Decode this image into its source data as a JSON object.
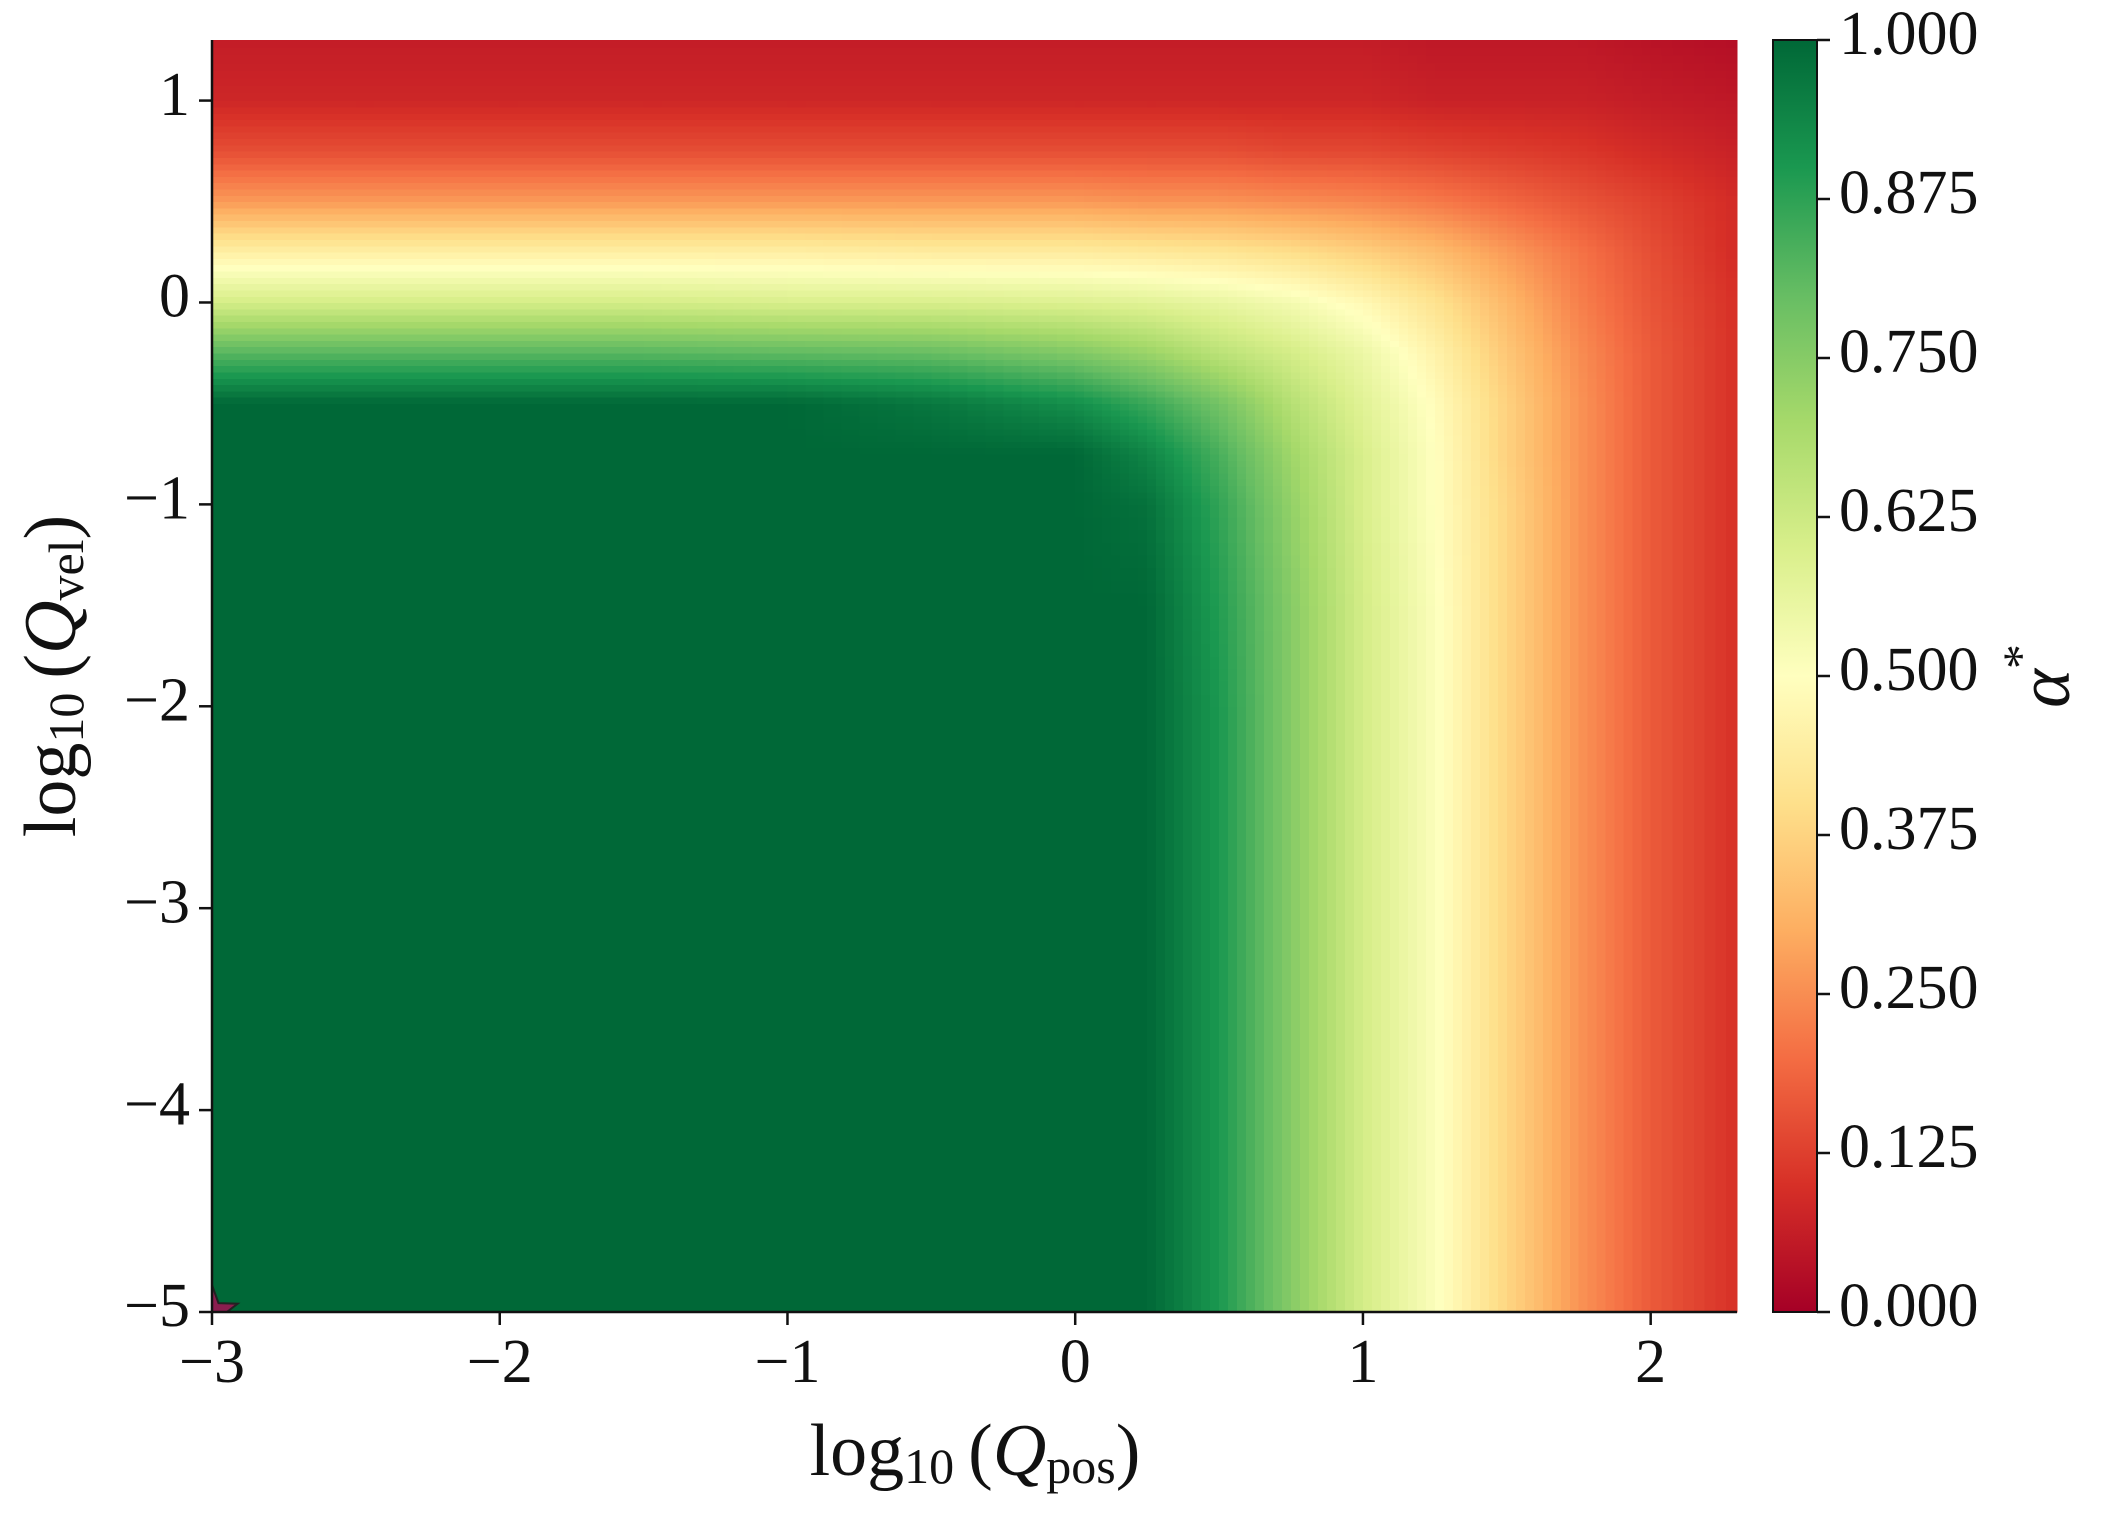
{
  "chart_data": {
    "type": "contourf",
    "x": [
      -3,
      -2.5,
      -2,
      -1.5,
      -1,
      -0.5,
      0,
      0.25,
      0.5,
      0.75,
      1,
      1.25,
      1.5,
      1.75,
      2,
      2.3
    ],
    "y": [
      -5,
      -4,
      -3,
      -2,
      -1.5,
      -1,
      -0.75,
      -0.5,
      -0.25,
      0,
      0.25,
      0.5,
      0.75,
      1,
      1.3
    ],
    "z": [
      [
        1,
        1,
        1,
        1,
        1,
        1,
        1,
        1,
        0.9,
        0.75,
        0.61,
        0.51,
        0.38,
        0.26,
        0.17,
        0.1
      ],
      [
        1,
        1,
        1,
        1,
        1,
        1,
        1,
        1,
        0.9,
        0.75,
        0.61,
        0.51,
        0.38,
        0.26,
        0.17,
        0.1
      ],
      [
        1,
        1,
        1,
        1,
        1,
        1,
        1,
        1,
        0.9,
        0.75,
        0.61,
        0.51,
        0.38,
        0.26,
        0.17,
        0.1
      ],
      [
        1,
        1,
        1,
        1,
        1,
        1,
        1,
        1,
        0.9,
        0.75,
        0.61,
        0.51,
        0.38,
        0.26,
        0.17,
        0.1
      ],
      [
        1,
        1,
        1,
        1,
        1,
        1,
        1,
        1,
        0.89,
        0.75,
        0.61,
        0.51,
        0.38,
        0.26,
        0.17,
        0.1
      ],
      [
        1,
        1,
        1,
        1,
        1,
        1,
        1,
        0.98,
        0.87,
        0.73,
        0.6,
        0.5,
        0.38,
        0.26,
        0.17,
        0.1
      ],
      [
        1,
        1,
        1,
        1,
        1,
        1,
        1,
        0.94,
        0.84,
        0.71,
        0.6,
        0.5,
        0.37,
        0.26,
        0.17,
        0.1
      ],
      [
        1,
        1,
        1,
        1,
        1,
        0.97,
        0.92,
        0.86,
        0.78,
        0.67,
        0.58,
        0.49,
        0.37,
        0.26,
        0.17,
        0.1
      ],
      [
        0.82,
        0.82,
        0.82,
        0.82,
        0.81,
        0.8,
        0.76,
        0.72,
        0.66,
        0.61,
        0.55,
        0.46,
        0.35,
        0.25,
        0.17,
        0.1
      ],
      [
        0.61,
        0.61,
        0.61,
        0.61,
        0.6,
        0.6,
        0.59,
        0.58,
        0.56,
        0.53,
        0.48,
        0.41,
        0.32,
        0.23,
        0.16,
        0.1
      ],
      [
        0.45,
        0.45,
        0.45,
        0.45,
        0.45,
        0.44,
        0.44,
        0.43,
        0.42,
        0.4,
        0.37,
        0.33,
        0.27,
        0.21,
        0.15,
        0.09
      ],
      [
        0.27,
        0.27,
        0.27,
        0.27,
        0.27,
        0.27,
        0.27,
        0.26,
        0.26,
        0.25,
        0.24,
        0.22,
        0.19,
        0.16,
        0.13,
        0.09
      ],
      [
        0.15,
        0.15,
        0.15,
        0.15,
        0.15,
        0.15,
        0.15,
        0.15,
        0.15,
        0.14,
        0.14,
        0.13,
        0.12,
        0.11,
        0.09,
        0.07
      ],
      [
        0.08,
        0.08,
        0.08,
        0.08,
        0.08,
        0.08,
        0.08,
        0.08,
        0.08,
        0.08,
        0.08,
        0.07,
        0.07,
        0.07,
        0.06,
        0.05
      ],
      [
        0.06,
        0.06,
        0.06,
        0.06,
        0.06,
        0.06,
        0.06,
        0.06,
        0.06,
        0.06,
        0.06,
        0.05,
        0.05,
        0.05,
        0.04,
        0.03
      ]
    ],
    "xlim": [
      -3,
      2.3
    ],
    "ylim": [
      -5,
      1.3
    ],
    "xticks": [
      {
        "value": -3,
        "label": "−3"
      },
      {
        "value": -2,
        "label": "−2"
      },
      {
        "value": -1,
        "label": "−1"
      },
      0,
      1,
      2
    ],
    "yticks": [
      {
        "value": -5,
        "label": "−5"
      },
      {
        "value": -4,
        "label": "−4"
      },
      {
        "value": -3,
        "label": "−3"
      },
      {
        "value": -2,
        "label": "−2"
      },
      {
        "value": -1,
        "label": "−1"
      },
      0,
      1
    ],
    "xlabel": {
      "func": "log",
      "func_sub": "10",
      "open": "(",
      "var": "Q",
      "var_sub": "pos",
      "close": ")"
    },
    "ylabel": {
      "func": "log",
      "func_sub": "10",
      "open": "(",
      "var": "Q",
      "var_sub": "vel",
      "close": ")"
    },
    "colormap": [
      "#a50026",
      "#d73027",
      "#f46d43",
      "#fdae61",
      "#fee08b",
      "#ffffbf",
      "#d9ef8b",
      "#a6d96a",
      "#66bd63",
      "#1a9850",
      "#006837"
    ],
    "clim": [
      0,
      1
    ],
    "cticks": [
      {
        "value": 0,
        "label": "0.000"
      },
      0.125,
      {
        "value": 0.25,
        "label": "0.250"
      },
      0.375,
      {
        "value": 0.5,
        "label": "0.500"
      },
      0.625,
      {
        "value": 0.75,
        "label": "0.750"
      },
      0.875,
      {
        "value": 1,
        "label": "1.000"
      }
    ],
    "clabel": {
      "symbol": "α",
      "sup": "*"
    },
    "marker": {
      "x": -3,
      "y": -5,
      "color": "#8b1e4f"
    }
  }
}
